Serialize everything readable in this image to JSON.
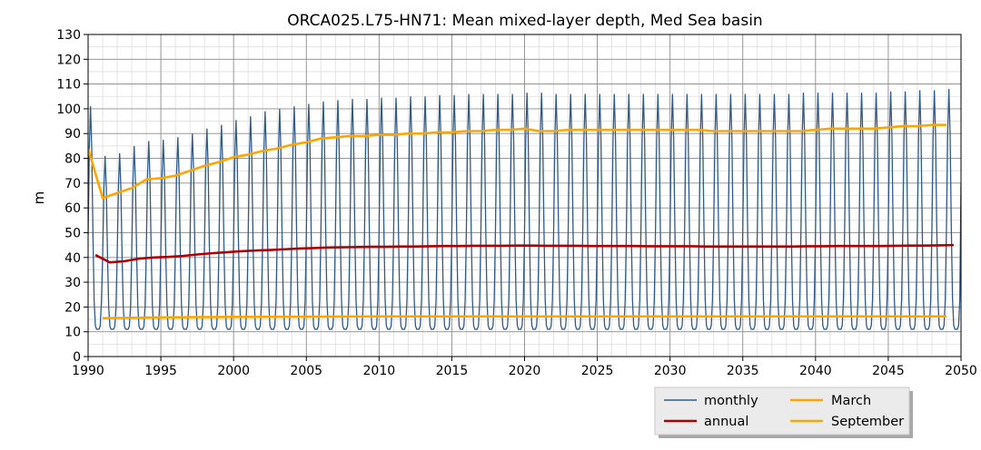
{
  "chart_data": {
    "type": "line",
    "title": "ORCA025.L75-HN71: Mean mixed-layer depth, Med Sea basin",
    "xlabel": "",
    "ylabel": "m",
    "xlim": [
      1990,
      2050
    ],
    "ylim": [
      0,
      130
    ],
    "x_ticks": [
      1990,
      1995,
      2000,
      2005,
      2010,
      2015,
      2020,
      2025,
      2030,
      2035,
      2040,
      2045,
      2050
    ],
    "y_ticks": [
      0,
      10,
      20,
      30,
      40,
      50,
      60,
      70,
      80,
      90,
      100,
      110,
      120,
      130
    ],
    "grid": true,
    "legend_placement": "bottom-right, outside below plot",
    "series": [
      {
        "name": "monthly",
        "color": "#2f5a8a",
        "monthly_min": 11,
        "annual_peaks_by_year": [
          [
            1990,
            101
          ],
          [
            1991,
            81
          ],
          [
            1992,
            82
          ],
          [
            1993,
            85
          ],
          [
            1994,
            87
          ],
          [
            1995,
            87.5
          ],
          [
            1996,
            88.5
          ],
          [
            1997,
            90
          ],
          [
            1998,
            92
          ],
          [
            1999,
            93.5
          ],
          [
            2000,
            95.5
          ],
          [
            2001,
            97
          ],
          [
            2002,
            99
          ],
          [
            2003,
            100
          ],
          [
            2004,
            101
          ],
          [
            2005,
            102
          ],
          [
            2006,
            103
          ],
          [
            2007,
            103.5
          ],
          [
            2008,
            104
          ],
          [
            2009,
            104
          ],
          [
            2010,
            104.5
          ],
          [
            2011,
            104.5
          ],
          [
            2012,
            105
          ],
          [
            2013,
            105
          ],
          [
            2014,
            105.5
          ],
          [
            2015,
            105.5
          ],
          [
            2016,
            106
          ],
          [
            2017,
            106
          ],
          [
            2018,
            106
          ],
          [
            2019,
            106
          ],
          [
            2020,
            106.5
          ],
          [
            2021,
            106.5
          ],
          [
            2022,
            106
          ],
          [
            2023,
            106
          ],
          [
            2024,
            106
          ],
          [
            2025,
            106
          ],
          [
            2026,
            106
          ],
          [
            2027,
            106
          ],
          [
            2028,
            106
          ],
          [
            2029,
            106
          ],
          [
            2030,
            106
          ],
          [
            2031,
            106
          ],
          [
            2032,
            106
          ],
          [
            2033,
            106
          ],
          [
            2034,
            106
          ],
          [
            2035,
            106
          ],
          [
            2036,
            106
          ],
          [
            2037,
            106
          ],
          [
            2038,
            106
          ],
          [
            2039,
            106.5
          ],
          [
            2040,
            106.5
          ],
          [
            2041,
            106.5
          ],
          [
            2042,
            106.5
          ],
          [
            2043,
            106.5
          ],
          [
            2044,
            106.5
          ],
          [
            2045,
            107
          ],
          [
            2046,
            107
          ],
          [
            2047,
            107.5
          ],
          [
            2048,
            107.5
          ],
          [
            2049,
            108
          ]
        ],
        "end_value": [
          2050,
          70
        ]
      },
      {
        "name": "annual",
        "color": "#b00000",
        "x": [
          1990.5,
          1991.5,
          1992.5,
          1993.5,
          1994.5,
          1995.5,
          1996.5,
          1997.5,
          1998.5,
          1999.5,
          2000.5,
          2001.5,
          2002.5,
          2003.5,
          2004.5,
          2005.5,
          2006.5,
          2007.5,
          2008.5,
          2009.5,
          2010.5,
          2011.5,
          2012.5,
          2013.5,
          2014.5,
          2015.5,
          2016.5,
          2017.5,
          2018.5,
          2019.5,
          2020.5,
          2021.5,
          2022.5,
          2023.5,
          2024.5,
          2025.5,
          2026.5,
          2027.5,
          2028.5,
          2029.5,
          2030.5,
          2031.5,
          2032.5,
          2033.5,
          2034.5,
          2035.5,
          2036.5,
          2037.5,
          2038.5,
          2039.5,
          2040.5,
          2041.5,
          2042.5,
          2043.5,
          2044.5,
          2045.5,
          2046.5,
          2047.5,
          2048.5,
          2049.5
        ],
        "values": [
          41,
          38,
          38.5,
          39.5,
          40,
          40.2,
          40.6,
          41.2,
          41.7,
          42.1,
          42.5,
          42.8,
          43,
          43.3,
          43.6,
          43.8,
          44,
          44.1,
          44.2,
          44.3,
          44.3,
          44.4,
          44.4,
          44.5,
          44.6,
          44.6,
          44.7,
          44.7,
          44.7,
          44.8,
          44.8,
          44.7,
          44.7,
          44.7,
          44.6,
          44.6,
          44.6,
          44.6,
          44.5,
          44.5,
          44.5,
          44.5,
          44.4,
          44.4,
          44.4,
          44.4,
          44.4,
          44.4,
          44.4,
          44.5,
          44.5,
          44.6,
          44.6,
          44.6,
          44.6,
          44.7,
          44.8,
          44.8,
          44.9,
          45
        ]
      },
      {
        "name": "March",
        "color": "#ffa500",
        "x": [
          1990,
          1991,
          1992,
          1993,
          1994,
          1995,
          1996,
          1997,
          1998,
          1999,
          2000,
          2001,
          2002,
          2003,
          2004,
          2005,
          2006,
          2007,
          2008,
          2009,
          2010,
          2011,
          2012,
          2013,
          2014,
          2015,
          2016,
          2017,
          2018,
          2019,
          2020,
          2021,
          2022,
          2023,
          2024,
          2025,
          2026,
          2027,
          2028,
          2029,
          2030,
          2031,
          2032,
          2033,
          2034,
          2035,
          2036,
          2037,
          2038,
          2039,
          2040,
          2041,
          2042,
          2043,
          2044,
          2045,
          2046,
          2047,
          2048,
          2049
        ],
        "values": [
          84,
          64,
          66,
          68,
          71.5,
          72,
          73,
          75,
          77,
          78.5,
          80.5,
          81.5,
          83,
          84,
          85.5,
          86.5,
          88,
          88.5,
          89,
          89,
          89.5,
          89.5,
          90,
          90,
          90.5,
          90.5,
          91,
          91,
          91.5,
          91.5,
          92,
          91,
          91,
          91.5,
          91.5,
          91.5,
          91.5,
          91.5,
          91.5,
          91.5,
          91.5,
          91.5,
          91.5,
          91,
          91,
          91,
          91,
          91,
          91,
          91,
          91.5,
          92,
          92,
          92,
          92,
          92.5,
          93,
          93,
          93.5,
          93.5
        ]
      },
      {
        "name": "September",
        "color": "#ffa500",
        "x": [
          1991,
          1995,
          2000,
          2005,
          2010,
          2015,
          2020,
          2025,
          2030,
          2035,
          2040,
          2045,
          2049
        ],
        "values": [
          15.5,
          15.8,
          16,
          16.1,
          16.2,
          16.2,
          16.2,
          16.2,
          16.2,
          16.2,
          16.2,
          16.2,
          16.2
        ]
      }
    ]
  }
}
